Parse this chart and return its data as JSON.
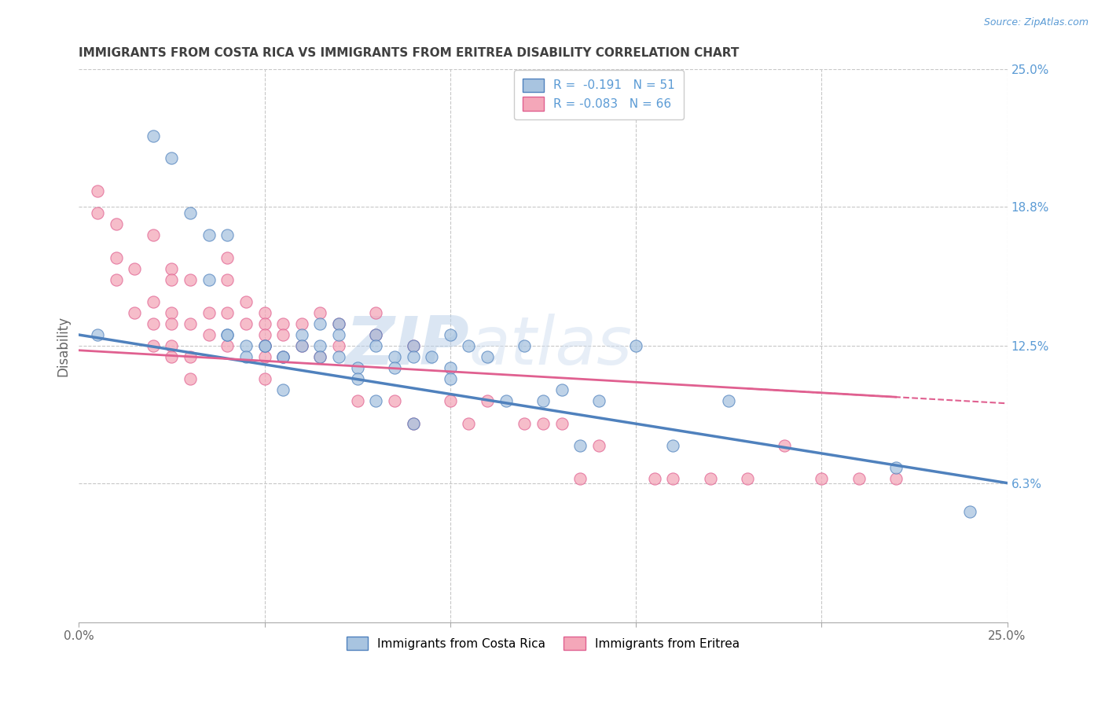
{
  "title": "IMMIGRANTS FROM COSTA RICA VS IMMIGRANTS FROM ERITREA DISABILITY CORRELATION CHART",
  "source": "Source: ZipAtlas.com",
  "ylabel": "Disability",
  "xlim": [
    0.0,
    0.25
  ],
  "ylim": [
    0.0,
    0.25
  ],
  "right_ytick_labels": [
    "25.0%",
    "18.8%",
    "12.5%",
    "6.3%"
  ],
  "right_ytick_values": [
    0.25,
    0.188,
    0.125,
    0.063
  ],
  "xtick_values": [
    0.0,
    0.05,
    0.1,
    0.15,
    0.2,
    0.25
  ],
  "legend_line1": "R =  -0.191   N = 51",
  "legend_line2": "R = -0.083   N = 66",
  "color_blue": "#a8c4e0",
  "color_pink": "#f4a7b9",
  "line_blue": "#4f81bd",
  "line_pink": "#e06090",
  "watermark_zip": "ZIP",
  "watermark_atlas": "atlas",
  "background_color": "#ffffff",
  "grid_color": "#c8c8c8",
  "title_color": "#404040",
  "right_label_color": "#5b9bd5",
  "source_color": "#5b9bd5",
  "cr_line_x0": 0.0,
  "cr_line_y0": 0.13,
  "cr_line_x1": 0.25,
  "cr_line_y1": 0.063,
  "er_line_x0": 0.0,
  "er_line_y0": 0.123,
  "er_line_x1": 0.25,
  "er_line_y1": 0.099,
  "costa_rica_x": [
    0.005,
    0.02,
    0.025,
    0.03,
    0.035,
    0.035,
    0.04,
    0.04,
    0.04,
    0.045,
    0.045,
    0.05,
    0.05,
    0.055,
    0.055,
    0.055,
    0.06,
    0.06,
    0.065,
    0.065,
    0.065,
    0.07,
    0.07,
    0.07,
    0.075,
    0.075,
    0.08,
    0.08,
    0.08,
    0.085,
    0.085,
    0.09,
    0.09,
    0.09,
    0.095,
    0.1,
    0.1,
    0.1,
    0.105,
    0.11,
    0.115,
    0.12,
    0.125,
    0.13,
    0.135,
    0.14,
    0.15,
    0.16,
    0.175,
    0.22,
    0.24
  ],
  "costa_rica_y": [
    0.13,
    0.22,
    0.21,
    0.185,
    0.175,
    0.155,
    0.13,
    0.175,
    0.13,
    0.125,
    0.12,
    0.125,
    0.125,
    0.12,
    0.12,
    0.105,
    0.13,
    0.125,
    0.135,
    0.125,
    0.12,
    0.135,
    0.13,
    0.12,
    0.115,
    0.11,
    0.13,
    0.125,
    0.1,
    0.12,
    0.115,
    0.125,
    0.12,
    0.09,
    0.12,
    0.13,
    0.115,
    0.11,
    0.125,
    0.12,
    0.1,
    0.125,
    0.1,
    0.105,
    0.08,
    0.1,
    0.125,
    0.08,
    0.1,
    0.07,
    0.05
  ],
  "eritrea_x": [
    0.005,
    0.005,
    0.01,
    0.01,
    0.01,
    0.015,
    0.015,
    0.02,
    0.02,
    0.02,
    0.02,
    0.025,
    0.025,
    0.025,
    0.025,
    0.025,
    0.025,
    0.03,
    0.03,
    0.03,
    0.03,
    0.035,
    0.035,
    0.04,
    0.04,
    0.04,
    0.04,
    0.045,
    0.045,
    0.05,
    0.05,
    0.05,
    0.05,
    0.05,
    0.05,
    0.055,
    0.055,
    0.055,
    0.06,
    0.06,
    0.065,
    0.065,
    0.07,
    0.07,
    0.075,
    0.08,
    0.08,
    0.085,
    0.09,
    0.09,
    0.1,
    0.105,
    0.11,
    0.12,
    0.125,
    0.13,
    0.135,
    0.14,
    0.155,
    0.16,
    0.17,
    0.18,
    0.19,
    0.2,
    0.21,
    0.22
  ],
  "eritrea_y": [
    0.195,
    0.185,
    0.18,
    0.165,
    0.155,
    0.16,
    0.14,
    0.175,
    0.145,
    0.135,
    0.125,
    0.16,
    0.155,
    0.14,
    0.135,
    0.125,
    0.12,
    0.155,
    0.135,
    0.12,
    0.11,
    0.14,
    0.13,
    0.165,
    0.155,
    0.14,
    0.125,
    0.145,
    0.135,
    0.14,
    0.135,
    0.13,
    0.125,
    0.12,
    0.11,
    0.135,
    0.13,
    0.12,
    0.135,
    0.125,
    0.14,
    0.12,
    0.135,
    0.125,
    0.1,
    0.14,
    0.13,
    0.1,
    0.125,
    0.09,
    0.1,
    0.09,
    0.1,
    0.09,
    0.09,
    0.09,
    0.065,
    0.08,
    0.065,
    0.065,
    0.065,
    0.065,
    0.08,
    0.065,
    0.065,
    0.065
  ]
}
